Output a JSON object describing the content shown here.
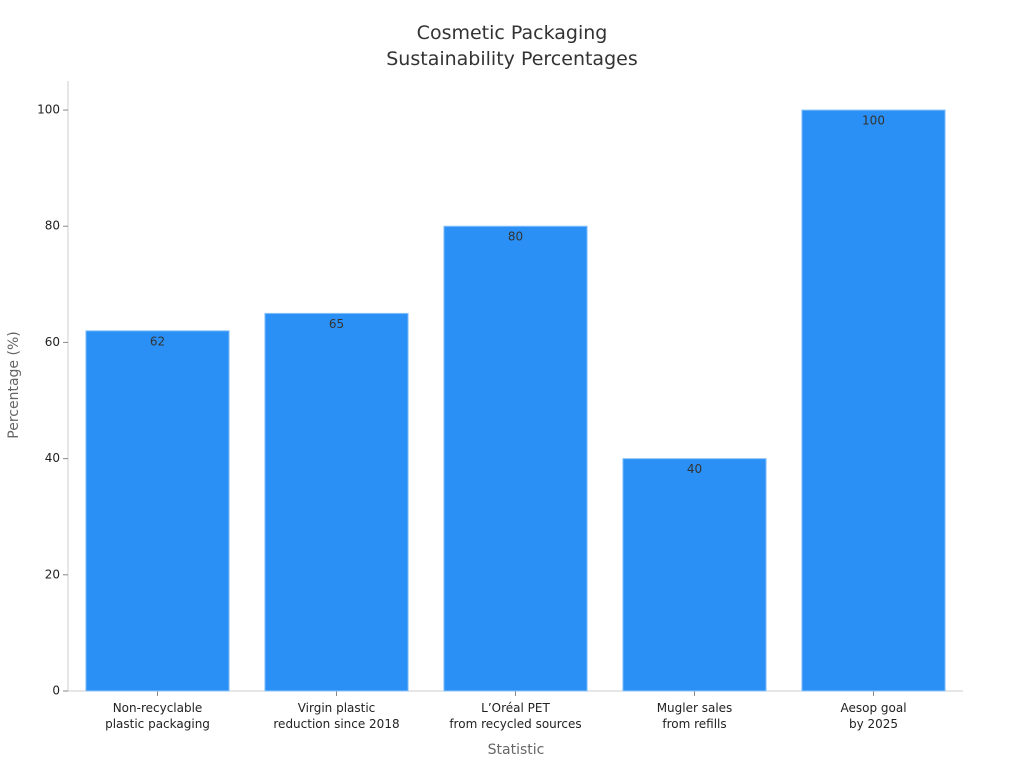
{
  "chart_data": {
    "type": "bar",
    "title": "Cosmetic Packaging\nSustainability Percentages",
    "x_label": "Statistic",
    "y_label": "Percentage (%)",
    "categories": [
      "Non-recyclable\nplastic packaging",
      "Virgin plastic\nreduction since 2018",
      "L’Oréal PET\nfrom recycled sources",
      "Mugler sales\nfrom refills",
      "Aesop goal\nby 2025"
    ],
    "values": [
      62,
      65,
      80,
      40,
      100
    ],
    "color": "#2b90f5",
    "ylim": [
      0,
      105
    ],
    "yticks": [
      0,
      20,
      40,
      60,
      80,
      100
    ],
    "grid": false
  }
}
